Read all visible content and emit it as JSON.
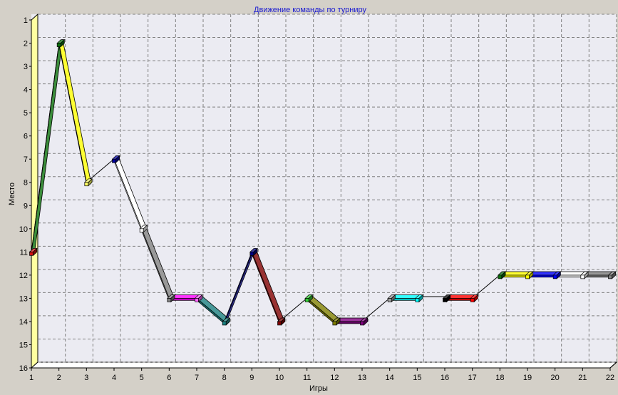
{
  "chart_data": {
    "type": "line",
    "title": "Движение команды по турниру",
    "xlabel": "Игры",
    "ylabel": "Место",
    "x": [
      1,
      2,
      3,
      4,
      5,
      6,
      7,
      8,
      9,
      10,
      11,
      12,
      13,
      14,
      15,
      16,
      17,
      18,
      19,
      20,
      21,
      22
    ],
    "series": [
      {
        "values": [
          11,
          2,
          8,
          7,
          10,
          13,
          13,
          14,
          11,
          14,
          13,
          14,
          14,
          13,
          13,
          13,
          13,
          12,
          12,
          12,
          12,
          12
        ]
      }
    ],
    "segment_colors": [
      "#0a700a",
      "#ffff00",
      "#000000",
      "#ffffff",
      "#808080",
      "#ff00ff",
      "#1a8080",
      "#000080",
      "#800000",
      "#000000",
      "#808000",
      "#800080",
      "#000000",
      "#00ffff",
      "#000000",
      "#ff0000",
      "#000000",
      "#ffff00",
      "#0000ff",
      "#ffffff",
      "#808080"
    ],
    "point_colors": [
      "#d01010",
      "#0a700a",
      "#ffff66",
      "#0000a0",
      "#ffffff",
      "#808080",
      "#ff66ff",
      "#1a8080",
      "#000080",
      "#800000",
      "#33cc33",
      "#808000",
      "#800080",
      "#a0a0a0",
      "#00ffff",
      "#000000",
      "#ff0000",
      "#0a700a",
      "#ffff00",
      "#0000ff",
      "#ffffff",
      "#808080"
    ],
    "x_ticks": [
      "1",
      "2",
      "3",
      "4",
      "5",
      "6",
      "7",
      "8",
      "9",
      "10",
      "11",
      "12",
      "13",
      "14",
      "15",
      "16",
      "17",
      "18",
      "19",
      "20",
      "21",
      "22"
    ],
    "y_ticks": [
      "1",
      "2",
      "3",
      "4",
      "5",
      "6",
      "7",
      "8",
      "9",
      "10",
      "11",
      "12",
      "13",
      "14",
      "15",
      "16"
    ],
    "xlim": [
      1,
      22
    ],
    "ylim": [
      1,
      16
    ],
    "y_inverted": true,
    "grid": true,
    "colors": {
      "background": "#d4d0c8",
      "plot_background": "#ebebf2",
      "wall": "#ffffa0",
      "grid": "#808080",
      "title": "#1a1ad0"
    }
  }
}
